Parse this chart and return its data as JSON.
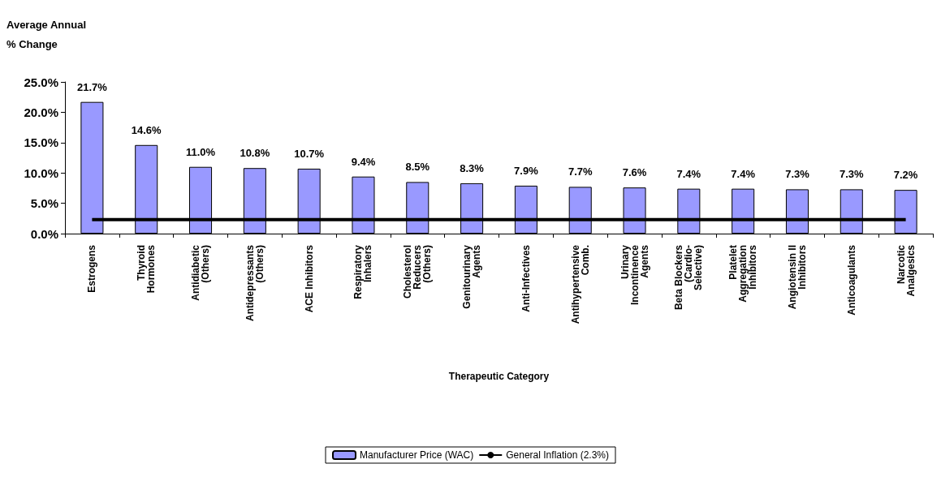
{
  "chart_data": {
    "type": "bar",
    "xlabel": "Therapeutic Category",
    "ylabel": "Average Annual\n% Change",
    "categories": [
      "Estrogens",
      "Thyroid\nHormones",
      "Antidiabetic\n(Others)",
      "Antidepressants\n(Others)",
      "ACE Inhibitors",
      "Respiratory\nInhalers",
      "Cholesterol\nReducers\n(Others)",
      "Genitourinary\nAgents",
      "Anti-Infectives",
      "Antihypertensive\nComb.",
      "Urinary\nIncontinence\nAgents",
      "Beta Blockers\n(Cardio-\nSelective)",
      "Platelet\nAggregation\nInhibitors",
      "Angiotensin II\nInhibitors",
      "Anticoagulants",
      "Narcotic\nAnalgesics"
    ],
    "series": [
      {
        "name": "Manufacturer Price (WAC)",
        "color": "#9999ff",
        "values": [
          21.7,
          14.6,
          11.0,
          10.8,
          10.7,
          9.4,
          8.5,
          8.3,
          7.9,
          7.7,
          7.6,
          7.4,
          7.4,
          7.3,
          7.3,
          7.2
        ],
        "value_labels": [
          "21.7%",
          "14.6%",
          "11.0%",
          "10.8%",
          "10.7%",
          "9.4%",
          "8.5%",
          "8.3%",
          "7.9%",
          "7.7%",
          "7.6%",
          "7.4%",
          "7.4%",
          "7.3%",
          "7.3%",
          "7.2%"
        ]
      },
      {
        "name": "General Inflation (2.3%)",
        "type": "line",
        "color": "#000000",
        "marker": "none",
        "values": [
          2.3,
          2.3,
          2.3,
          2.3,
          2.3,
          2.3,
          2.3,
          2.3,
          2.3,
          2.3,
          2.3,
          2.3,
          2.3,
          2.3,
          2.3,
          2.3
        ]
      }
    ],
    "ylim": [
      0,
      25
    ],
    "yticks": [
      {
        "value": 0,
        "label": "0.0%"
      },
      {
        "value": 5,
        "label": "5.0%"
      },
      {
        "value": 10,
        "label": "10.0%"
      },
      {
        "value": 15,
        "label": "15.0%"
      },
      {
        "value": 20,
        "label": "20.0%"
      },
      {
        "value": 25,
        "label": "25.0%"
      }
    ],
    "grid": false,
    "legend": "bottom"
  }
}
